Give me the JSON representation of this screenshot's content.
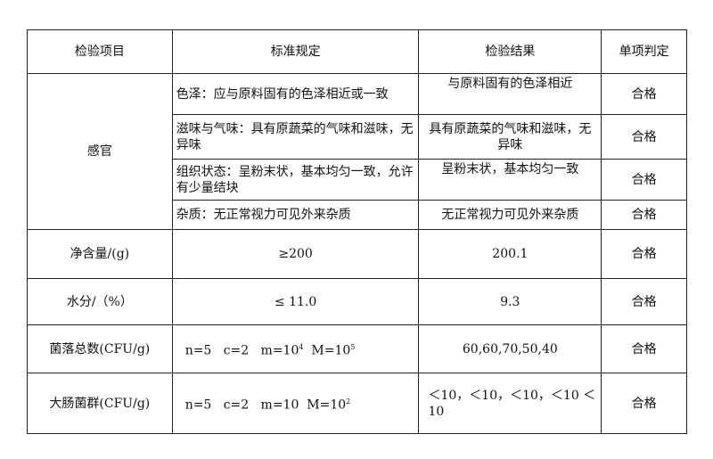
{
  "headers": [
    "检验项目",
    "标准规定",
    "检验结果",
    "单项判定"
  ],
  "sensory": {
    "item": "感官",
    "rows": [
      {
        "standard": "色泽：应与原料固有的色泽相近或一致",
        "result": "与原料固有的色泽相近",
        "verdict": "合格"
      },
      {
        "standard": "滋味与气味：具有原蔬菜的气味和滋味，无异味",
        "result": "具有原蔬菜的气味和滋味，无异味",
        "verdict": "合格"
      },
      {
        "standard": "组织状态：呈粉末状，基本均匀一致，允许有少量结块",
        "result": "呈粉末状，基本均匀一致",
        "verdict": "合格"
      },
      {
        "standard": "杂质：无正常视力可见外来杂质",
        "result": "无正常视力可见外来杂质",
        "verdict": "合格"
      }
    ]
  },
  "rows": [
    {
      "item": "净含量/(g)",
      "standard": "≥200",
      "result": "200.1",
      "verdict": "合格"
    },
    {
      "item": "水分/（%）",
      "standard": "≤ 11.0",
      "result": "9.3",
      "verdict": "合格"
    },
    {
      "item": "菌落总数(CFU/g)",
      "std_n": "n=5",
      "std_c": "c=2",
      "std_m": "m=10",
      "std_m_exp": "4",
      "std_M": "M=10",
      "std_M_exp": "5",
      "result": "60,60,70,50,40",
      "verdict": "合格"
    },
    {
      "item": "大肠菌群(CFU/g)",
      "std_n": "n=5",
      "std_c": "c=2",
      "std_m": "m=10",
      "std_M": "M=10",
      "std_M_exp": "2",
      "result": "＜10，＜10，＜10，＜10 ＜10",
      "verdict": "合格"
    }
  ]
}
